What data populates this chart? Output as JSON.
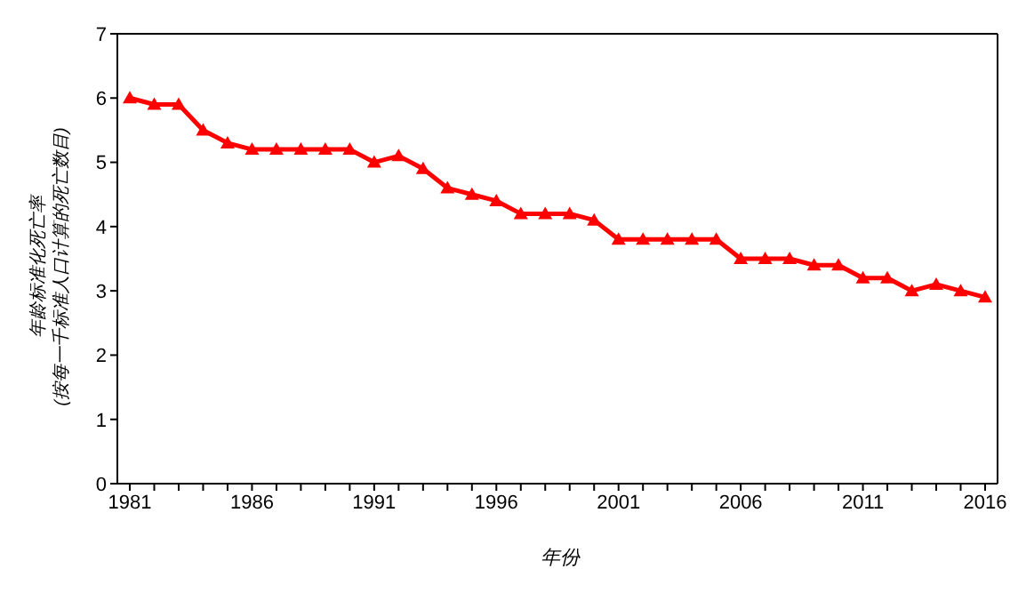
{
  "chart_data": {
    "type": "line",
    "xlabel": "年份",
    "ylabel": "年龄标准化死亡率\n(按每一千标准人口计算的死亡数目)",
    "categories": [
      "1981",
      null,
      null,
      null,
      null,
      "1986",
      null,
      null,
      null,
      null,
      "1991",
      null,
      null,
      null,
      null,
      "1996",
      null,
      null,
      null,
      null,
      "2001",
      null,
      null,
      null,
      null,
      "2006",
      null,
      null,
      null,
      null,
      "2011",
      null,
      null,
      null,
      null,
      "2016"
    ],
    "series": [
      {
        "color": "#ff0000",
        "values": [
          6.0,
          5.9,
          5.9,
          5.5,
          5.3,
          5.2,
          5.2,
          5.2,
          5.2,
          5.2,
          5.0,
          5.1,
          4.9,
          4.6,
          4.5,
          4.4,
          4.2,
          4.2,
          4.2,
          4.1,
          3.8,
          3.8,
          3.8,
          3.8,
          3.8,
          3.5,
          3.5,
          3.5,
          3.4,
          3.4,
          3.2,
          3.2,
          3.0,
          3.1,
          3.0,
          2.9
        ]
      }
    ],
    "ylim": [
      0,
      7
    ],
    "yticks": [
      0,
      1,
      2,
      3,
      4,
      5,
      6,
      7
    ],
    "grid": false,
    "legend": false,
    "marker": "triangle",
    "line_style": "solid"
  }
}
